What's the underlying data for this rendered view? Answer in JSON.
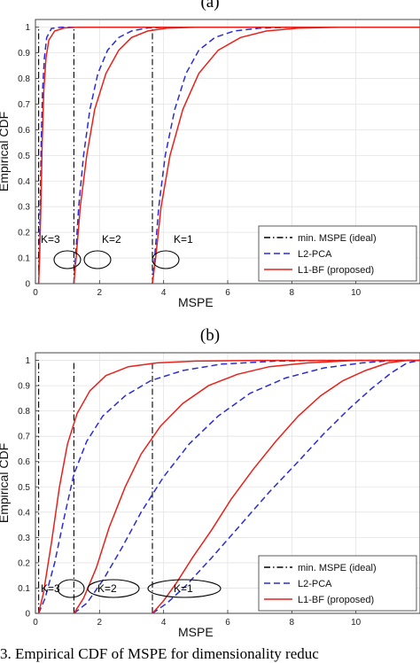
{
  "caption": "3.    Empirical CDF of MSPE for dimensionality reduc",
  "chart_data": [
    {
      "type": "line",
      "panel": "(a)",
      "xlabel": "MSPE",
      "ylabel": "Empirical CDF",
      "xlim": [
        0,
        12
      ],
      "ylim": [
        0,
        1.03
      ],
      "xticks": [
        "0",
        "2",
        "4",
        "6",
        "8",
        "10"
      ],
      "yticks": [
        "0",
        "0.1",
        "0.2",
        "0.3",
        "0.4",
        "0.5",
        "0.6",
        "0.7",
        "0.8",
        "0.9",
        "1"
      ],
      "grid": true,
      "legend_position": "bottom-right",
      "legend": [
        "min. MSPE (ideal)",
        "L2-PCA",
        "L1-BF (proposed)"
      ],
      "annotations": [
        "K=3",
        "K=2",
        "K=1"
      ],
      "series": [
        {
          "name": "min. MSPE (ideal)",
          "style": "dashdot",
          "color": "#000000",
          "vlines": [
            0.1,
            1.2,
            3.65
          ]
        },
        {
          "name": "L2-PCA",
          "style": "dashed",
          "color": "#2b2bd6",
          "curves": [
            [
              [
                0.1,
                0
              ],
              [
                0.12,
                0.1
              ],
              [
                0.15,
                0.3
              ],
              [
                0.18,
                0.55
              ],
              [
                0.22,
                0.75
              ],
              [
                0.28,
                0.88
              ],
              [
                0.35,
                0.96
              ],
              [
                0.5,
                0.995
              ],
              [
                0.8,
                1.0
              ],
              [
                12,
                1.0
              ]
            ],
            [
              [
                1.2,
                0
              ],
              [
                1.25,
                0.1
              ],
              [
                1.35,
                0.3
              ],
              [
                1.5,
                0.5
              ],
              [
                1.7,
                0.68
              ],
              [
                1.95,
                0.82
              ],
              [
                2.25,
                0.91
              ],
              [
                2.6,
                0.96
              ],
              [
                3.0,
                0.985
              ],
              [
                3.5,
                0.997
              ],
              [
                4.2,
                1.0
              ],
              [
                12,
                1.0
              ]
            ],
            [
              [
                3.65,
                0
              ],
              [
                3.72,
                0.1
              ],
              [
                3.85,
                0.3
              ],
              [
                4.05,
                0.5
              ],
              [
                4.35,
                0.68
              ],
              [
                4.7,
                0.82
              ],
              [
                5.1,
                0.91
              ],
              [
                5.6,
                0.96
              ],
              [
                6.2,
                0.985
              ],
              [
                7.0,
                0.996
              ],
              [
                8.0,
                1.0
              ],
              [
                12,
                1.0
              ]
            ]
          ]
        },
        {
          "name": "L1-BF (proposed)",
          "style": "solid",
          "color": "#e8211a",
          "curves": [
            [
              [
                0.1,
                0
              ],
              [
                0.13,
                0.1
              ],
              [
                0.17,
                0.3
              ],
              [
                0.21,
                0.55
              ],
              [
                0.26,
                0.75
              ],
              [
                0.33,
                0.88
              ],
              [
                0.42,
                0.95
              ],
              [
                0.6,
                0.985
              ],
              [
                0.9,
                0.997
              ],
              [
                1.3,
                1.0
              ],
              [
                12,
                1.0
              ]
            ],
            [
              [
                1.2,
                0
              ],
              [
                1.27,
                0.1
              ],
              [
                1.4,
                0.3
              ],
              [
                1.6,
                0.5
              ],
              [
                1.85,
                0.68
              ],
              [
                2.2,
                0.82
              ],
              [
                2.6,
                0.91
              ],
              [
                3.0,
                0.96
              ],
              [
                3.5,
                0.985
              ],
              [
                4.1,
                0.996
              ],
              [
                5.0,
                1.0
              ],
              [
                12,
                1.0
              ]
            ],
            [
              [
                3.65,
                0
              ],
              [
                3.75,
                0.1
              ],
              [
                3.92,
                0.3
              ],
              [
                4.2,
                0.5
              ],
              [
                4.6,
                0.68
              ],
              [
                5.1,
                0.82
              ],
              [
                5.7,
                0.91
              ],
              [
                6.4,
                0.96
              ],
              [
                7.2,
                0.985
              ],
              [
                8.2,
                0.996
              ],
              [
                9.5,
                1.0
              ],
              [
                12,
                1.0
              ]
            ]
          ]
        }
      ]
    },
    {
      "type": "line",
      "panel": "(b)",
      "xlabel": "MSPE",
      "ylabel": "Empirical CDF",
      "xlim": [
        0,
        12
      ],
      "ylim": [
        0,
        1.03
      ],
      "xticks": [
        "0",
        "2",
        "4",
        "6",
        "8",
        "10"
      ],
      "yticks": [
        "0",
        "0.1",
        "0.2",
        "0.3",
        "0.4",
        "0.5",
        "0.6",
        "0.7",
        "0.8",
        "0.9",
        "1"
      ],
      "grid": true,
      "legend_position": "bottom-right",
      "legend": [
        "min. MSPE (ideal)",
        "L2-PCA",
        "L1-BF (proposed)"
      ],
      "annotations": [
        "K=3",
        "K=2",
        "K=1"
      ],
      "series": [
        {
          "name": "min. MSPE (ideal)",
          "style": "dashdot",
          "color": "#000000",
          "vlines": [
            0.1,
            1.2,
            3.65
          ]
        },
        {
          "name": "L2-PCA",
          "style": "dashed",
          "color": "#2b2bd6",
          "curves": [
            [
              [
                0.1,
                0
              ],
              [
                0.3,
                0.06
              ],
              [
                0.6,
                0.2
              ],
              [
                0.9,
                0.38
              ],
              [
                1.2,
                0.55
              ],
              [
                1.6,
                0.68
              ],
              [
                2.1,
                0.78
              ],
              [
                2.8,
                0.86
              ],
              [
                3.6,
                0.92
              ],
              [
                4.6,
                0.96
              ],
              [
                5.8,
                0.985
              ],
              [
                7.5,
                0.997
              ],
              [
                9.0,
                1.0
              ],
              [
                12,
                1.0
              ]
            ],
            [
              [
                1.2,
                0
              ],
              [
                1.6,
                0.04
              ],
              [
                2.1,
                0.13
              ],
              [
                2.7,
                0.26
              ],
              [
                3.3,
                0.4
              ],
              [
                4.0,
                0.54
              ],
              [
                4.8,
                0.67
              ],
              [
                5.7,
                0.78
              ],
              [
                6.7,
                0.87
              ],
              [
                7.8,
                0.93
              ],
              [
                9.0,
                0.97
              ],
              [
                10.2,
                0.99
              ],
              [
                11.2,
                1.0
              ],
              [
                12,
                1.0
              ]
            ],
            [
              [
                3.65,
                0
              ],
              [
                4.1,
                0.04
              ],
              [
                4.7,
                0.11
              ],
              [
                5.5,
                0.22
              ],
              [
                6.4,
                0.35
              ],
              [
                7.3,
                0.48
              ],
              [
                8.2,
                0.6
              ],
              [
                9.0,
                0.71
              ],
              [
                9.8,
                0.81
              ],
              [
                10.5,
                0.89
              ],
              [
                11.1,
                0.95
              ],
              [
                11.6,
                0.99
              ],
              [
                12,
                1.0
              ]
            ]
          ]
        },
        {
          "name": "L1-BF (proposed)",
          "style": "solid",
          "color": "#e8211a",
          "curves": [
            [
              [
                0.1,
                0
              ],
              [
                0.25,
                0.08
              ],
              [
                0.5,
                0.28
              ],
              [
                0.75,
                0.5
              ],
              [
                1.0,
                0.67
              ],
              [
                1.3,
                0.79
              ],
              [
                1.7,
                0.88
              ],
              [
                2.2,
                0.94
              ],
              [
                2.9,
                0.975
              ],
              [
                3.8,
                0.99
              ],
              [
                5.0,
                0.997
              ],
              [
                7.0,
                1.0
              ],
              [
                12,
                1.0
              ]
            ],
            [
              [
                1.2,
                0
              ],
              [
                1.5,
                0.06
              ],
              [
                1.9,
                0.18
              ],
              [
                2.3,
                0.34
              ],
              [
                2.8,
                0.5
              ],
              [
                3.3,
                0.63
              ],
              [
                3.9,
                0.74
              ],
              [
                4.6,
                0.83
              ],
              [
                5.4,
                0.9
              ],
              [
                6.3,
                0.945
              ],
              [
                7.3,
                0.975
              ],
              [
                8.5,
                0.99
              ],
              [
                10.0,
                1.0
              ],
              [
                12,
                1.0
              ]
            ],
            [
              [
                3.65,
                0
              ],
              [
                4.0,
                0.05
              ],
              [
                4.4,
                0.12
              ],
              [
                4.9,
                0.22
              ],
              [
                5.5,
                0.33
              ],
              [
                6.1,
                0.45
              ],
              [
                6.8,
                0.57
              ],
              [
                7.5,
                0.68
              ],
              [
                8.2,
                0.78
              ],
              [
                8.9,
                0.86
              ],
              [
                9.6,
                0.92
              ],
              [
                10.3,
                0.96
              ],
              [
                11.0,
                0.99
              ],
              [
                11.6,
                1.0
              ],
              [
                12,
                1.0
              ]
            ]
          ]
        }
      ]
    }
  ]
}
